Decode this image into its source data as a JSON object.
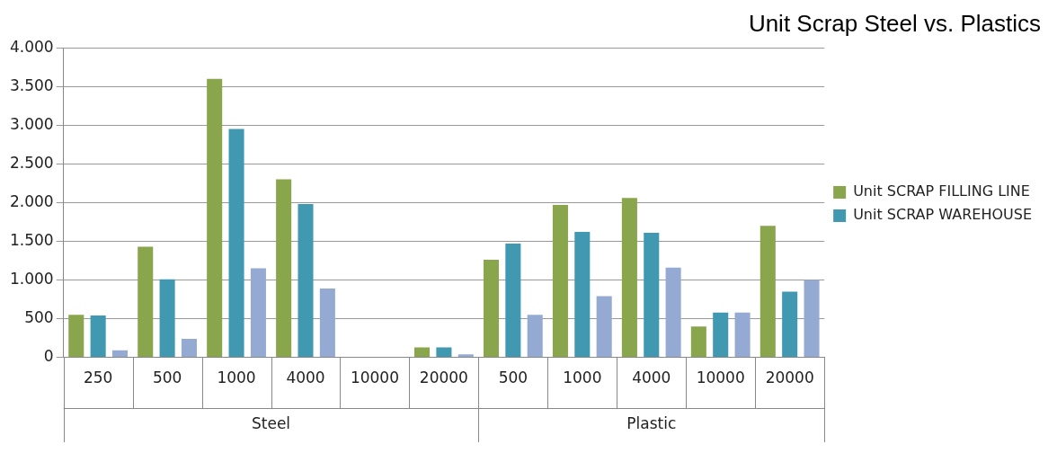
{
  "chart_data": {
    "type": "bar",
    "title": "Unit Scrap Steel vs. Plastics",
    "categories": [
      "250",
      "500",
      "1000",
      "4000",
      "10000",
      "20000",
      "500",
      "1000",
      "4000",
      "10000",
      "20000"
    ],
    "series": [
      {
        "name": "Unit SCRAP FILLING LINE",
        "color": "#8aa64c",
        "values": [
          550,
          1430,
          3600,
          2300,
          0,
          130,
          1260,
          1970,
          2060,
          400,
          1700
        ]
      },
      {
        "color": "#4198b1",
        "values": [
          540,
          1010,
          2950,
          1980,
          0,
          130,
          1470,
          1620,
          1610,
          580,
          850
        ],
        "name": "Unit SCRAP WAREHOUSE"
      },
      {
        "color": "#94aad3",
        "values": [
          90,
          240,
          1150,
          890,
          0,
          40,
          550,
          790,
          1160,
          580,
          1000
        ]
      }
    ],
    "ylim": [
      0,
      4000
    ],
    "yticks": [
      0,
      500,
      {
        "value": 1000,
        "label": "1.000"
      },
      {
        "value": 1500,
        "label": "1.500"
      },
      {
        "value": 2000,
        "label": "2.000"
      },
      {
        "value": 2500,
        "label": "2.500"
      },
      {
        "value": 3000,
        "label": "3.000"
      },
      {
        "value": 3500,
        "label": "3.500"
      },
      {
        "value": 4000,
        "label": "4.000"
      }
    ],
    "grid": "y",
    "legend": "right",
    "annotations": [
      "Steel",
      "Plastic"
    ]
  }
}
